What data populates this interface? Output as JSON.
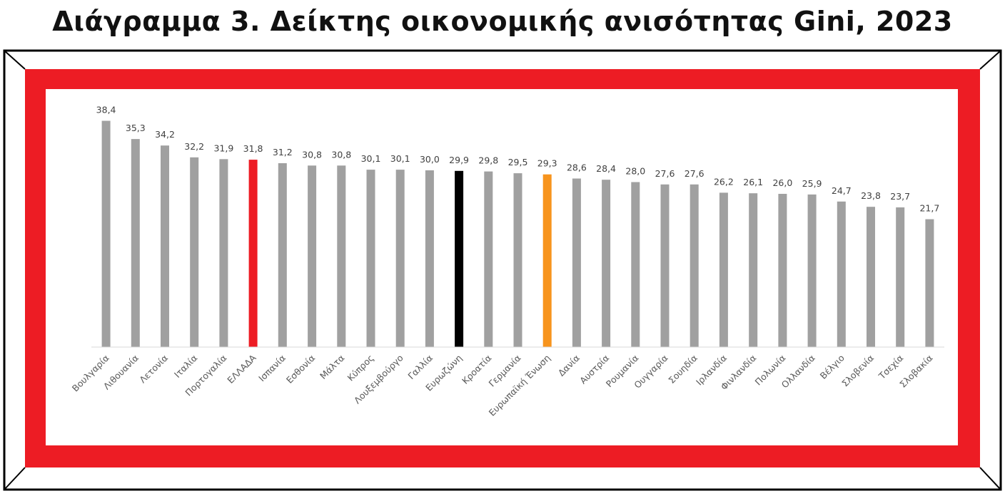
{
  "title": "Διάγραμμα 3. Δείκτης οικονομικής ανισότητας Gini, 2023",
  "colors": {
    "frame_red": "#ED1C24",
    "bar_default": "#A0A0A0",
    "bar_greece": "#ED1C24",
    "bar_eurozone": "#000000",
    "bar_eu": "#F7941D",
    "label_text": "#404040",
    "axis_label_text": "#595959"
  },
  "chart_data": {
    "type": "bar",
    "title": "Διάγραμμα 3. Δείκτης οικονομικής ανισότητας Gini, 2023",
    "xlabel": "",
    "ylabel": "",
    "grid": false,
    "legend": "none",
    "data_labels": true,
    "ylim": [
      0,
      40
    ],
    "categories": [
      "Βουλγαρία",
      "Λιθουανία",
      "Λετονία",
      "Ιταλία",
      "Πορτογαλία",
      "ΕΛΛΑΔΑ",
      "Ισπανία",
      "Εσθονία",
      "Μάλτα",
      "Κύπρος",
      "Λουξεμβούργο",
      "Γαλλία",
      "Ευρωζώνη",
      "Κροατία",
      "Γερμανία",
      "Ευρωπαϊκή Ένωση",
      "Δανία",
      "Αυστρία",
      "Ρουμανία",
      "Ουγγαρία",
      "Σουηδία",
      "Ιρλανδία",
      "Φινλανδία",
      "Πολωνία",
      "Ολλανδία",
      "Βέλγιο",
      "Σλοβενία",
      "Τσεχία",
      "Σλοβακία"
    ],
    "values": [
      38.4,
      35.3,
      34.2,
      32.2,
      31.9,
      31.8,
      31.2,
      30.8,
      30.8,
      30.1,
      30.1,
      30.0,
      29.9,
      29.8,
      29.5,
      29.3,
      28.6,
      28.4,
      28.0,
      27.6,
      27.6,
      26.2,
      26.1,
      26.0,
      25.9,
      24.7,
      23.8,
      23.7,
      21.7
    ],
    "value_labels": [
      "38,4",
      "35,3",
      "34,2",
      "32,2",
      "31,9",
      "31,8",
      "31,2",
      "30,8",
      "30,8",
      "30,1",
      "30,1",
      "30,0",
      "29,9",
      "29,8",
      "29,5",
      "29,3",
      "28,6",
      "28,4",
      "28,0",
      "27,6",
      "27,6",
      "26,2",
      "26,1",
      "26,0",
      "25,9",
      "24,7",
      "23,8",
      "23,7",
      "21,7"
    ],
    "highlights": {
      "ΕΛΛΑΔΑ": "#ED1C24",
      "Ευρωζώνη": "#000000",
      "Ευρωπαϊκή Ένωση": "#F7941D"
    }
  }
}
